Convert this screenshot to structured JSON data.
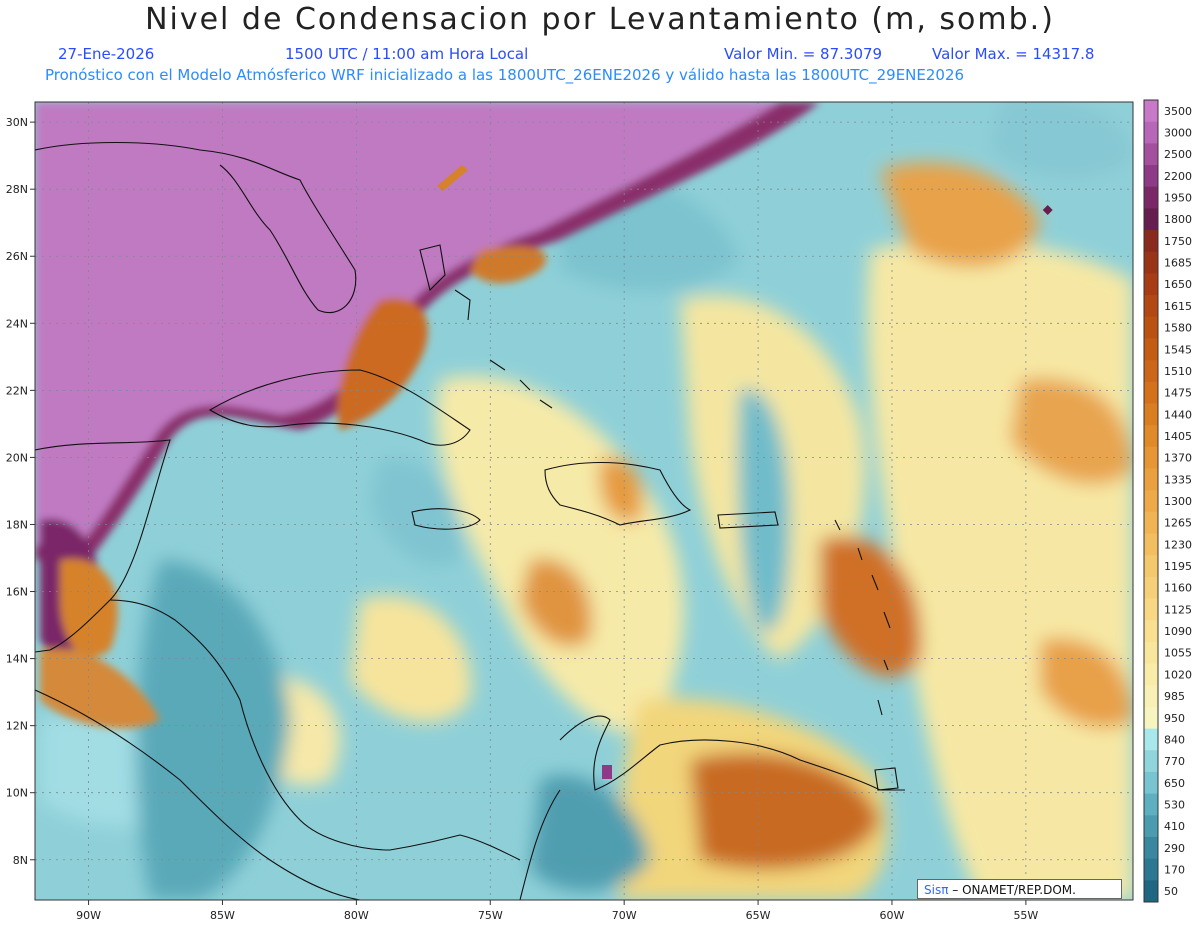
{
  "header": {
    "title": "Nivel de Condensacion por Levantamiento (m, somb.)",
    "date": "27-Ene-2026",
    "time": "1500 UTC / 11:00 am Hora Local",
    "min_label": "Valor Min. = 87.3079",
    "max_label": "Valor Max. = 14317.8",
    "model_line": "Pronóstico con el Modelo Atmósferico WRF inicializado a las 1800UTC_26ENE2026 y válido hasta las  1800UTC_29ENE2026"
  },
  "map": {
    "lon_range": [
      -92,
      -51
    ],
    "lat_range": [
      6.8,
      30.6
    ],
    "lon_ticks": [
      "90W",
      "85W",
      "80W",
      "75W",
      "70W",
      "65W",
      "60W",
      "55W"
    ],
    "lat_ticks": [
      "30N",
      "28N",
      "26N",
      "24N",
      "22N",
      "20N",
      "18N",
      "16N",
      "14N",
      "12N",
      "10N",
      "8N"
    ],
    "grid": true
  },
  "colorbar": {
    "levels": [
      "3500",
      "3000",
      "2500",
      "2200",
      "1950",
      "1800",
      "1750",
      "1685",
      "1650",
      "1615",
      "1580",
      "1545",
      "1510",
      "1475",
      "1440",
      "1405",
      "1370",
      "1335",
      "1300",
      "1265",
      "1230",
      "1195",
      "1160",
      "1125",
      "1090",
      "1055",
      "1020",
      "985",
      "950",
      "840",
      "770",
      "650",
      "530",
      "410",
      "290",
      "170",
      "50"
    ],
    "colors": [
      "#c87ac8",
      "#b866b8",
      "#a4509e",
      "#8e3a86",
      "#7a2868",
      "#661e4e",
      "#8a2a1e",
      "#9a3416",
      "#a83c14",
      "#b44812",
      "#bc5212",
      "#c45c14",
      "#cc6618",
      "#d4721c",
      "#da7e22",
      "#e08a2a",
      "#e69634",
      "#eaa03e",
      "#eeaa48",
      "#f0b454",
      "#f2be60",
      "#f4c86c",
      "#f6d078",
      "#f8d884",
      "#f8e090",
      "#f8e69c",
      "#f8eca8",
      "#f8f0b4",
      "#f8f4c0",
      "#a8e8ec",
      "#90d4dc",
      "#78c4d0",
      "#5eb0c0",
      "#4c9cb0",
      "#3a88a0",
      "#2c7892",
      "#1e6682"
    ]
  },
  "credit": {
    "sis": "Sis",
    "pi": "π",
    "org": " – ONAMET/REP.DOM."
  }
}
